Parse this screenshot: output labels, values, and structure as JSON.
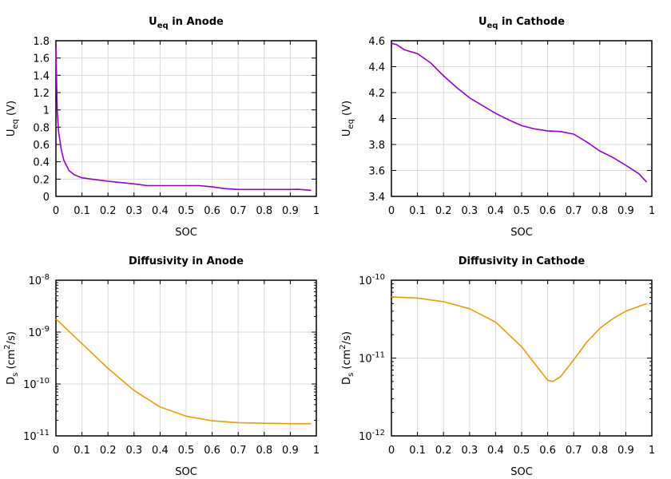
{
  "chart_data": [
    {
      "type": "line",
      "title": {
        "main": "U",
        "sub": "eq",
        "rest": " in Anode"
      },
      "xlabel": "SOC",
      "ylabel": {
        "main": "U",
        "sub": "eq",
        "rest": " (V)"
      },
      "xlim": [
        0,
        1
      ],
      "ylim": [
        0,
        1.8
      ],
      "yscale": "linear",
      "grid": true,
      "xticks": [
        "0",
        "0.1",
        "0.2",
        "0.3",
        "0.4",
        "0.5",
        "0.6",
        "0.7",
        "0.8",
        "0.9",
        "1"
      ],
      "yticks": [
        "0",
        "0.2",
        "0.4",
        "0.6",
        "0.8",
        "1",
        "1.2",
        "1.4",
        "1.6",
        "1.8"
      ],
      "color": "#9400d3",
      "x": [
        0,
        0.005,
        0.01,
        0.02,
        0.03,
        0.05,
        0.07,
        0.1,
        0.15,
        0.2,
        0.25,
        0.3,
        0.35,
        0.4,
        0.45,
        0.5,
        0.55,
        0.6,
        0.65,
        0.7,
        0.8,
        0.9,
        0.93,
        0.98
      ],
      "y": [
        1.72,
        1.0,
        0.75,
        0.55,
        0.42,
        0.3,
        0.25,
        0.215,
        0.195,
        0.175,
        0.16,
        0.145,
        0.125,
        0.125,
        0.125,
        0.125,
        0.125,
        0.11,
        0.09,
        0.08,
        0.08,
        0.08,
        0.082,
        0.07
      ]
    },
    {
      "type": "line",
      "title": {
        "main": "U",
        "sub": "eq",
        "rest": " in Cathode"
      },
      "xlabel": "SOC",
      "ylabel": {
        "main": "U",
        "sub": "eq",
        "rest": " (V)"
      },
      "xlim": [
        0,
        1
      ],
      "ylim": [
        3.4,
        4.6
      ],
      "yscale": "linear",
      "grid": true,
      "xticks": [
        "0",
        "0.1",
        "0.2",
        "0.3",
        "0.4",
        "0.5",
        "0.6",
        "0.7",
        "0.8",
        "0.9",
        "1"
      ],
      "yticks": [
        "3.4",
        "3.6",
        "3.8",
        "4",
        "4.2",
        "4.4",
        "4.6"
      ],
      "color": "#9400d3",
      "x": [
        0,
        0.02,
        0.05,
        0.1,
        0.15,
        0.2,
        0.25,
        0.3,
        0.35,
        0.4,
        0.45,
        0.5,
        0.55,
        0.6,
        0.65,
        0.7,
        0.75,
        0.8,
        0.85,
        0.9,
        0.95,
        0.98
      ],
      "y": [
        4.58,
        4.57,
        4.53,
        4.5,
        4.43,
        4.33,
        4.24,
        4.16,
        4.1,
        4.04,
        3.99,
        3.945,
        3.92,
        3.905,
        3.9,
        3.88,
        3.82,
        3.75,
        3.7,
        3.64,
        3.575,
        3.51
      ]
    },
    {
      "type": "line",
      "title": {
        "main": "Diffusivity in Anode",
        "sub": "",
        "rest": ""
      },
      "xlabel": "SOC",
      "ylabel": {
        "main": "D",
        "sub": "s",
        "rest": " (cm",
        "sup": "2",
        "rest2": "/s)"
      },
      "xlim": [
        0,
        1
      ],
      "ylim": [
        1e-11,
        1e-08
      ],
      "yscale": "log",
      "grid": true,
      "xticks": [
        "0",
        "0.1",
        "0.2",
        "0.3",
        "0.4",
        "0.5",
        "0.6",
        "0.7",
        "0.8",
        "0.9",
        "1"
      ],
      "yticks": [
        {
          "base": "10",
          "exp": "-11"
        },
        {
          "base": "10",
          "exp": "-10"
        },
        {
          "base": "10",
          "exp": "-9"
        },
        {
          "base": "10",
          "exp": "-8"
        }
      ],
      "color": "#e69f00",
      "x": [
        0,
        0.1,
        0.2,
        0.3,
        0.4,
        0.5,
        0.6,
        0.7,
        0.8,
        0.9,
        0.98
      ],
      "y": [
        1.8e-09,
        6e-10,
        2e-10,
        7.5e-11,
        3.6e-11,
        2.4e-11,
        1.95e-11,
        1.8e-11,
        1.75e-11,
        1.72e-11,
        1.72e-11
      ]
    },
    {
      "type": "line",
      "title": {
        "main": "Diffusivity in Cathode",
        "sub": "",
        "rest": ""
      },
      "xlabel": "SOC",
      "ylabel": {
        "main": "D",
        "sub": "s",
        "rest": " (cm",
        "sup": "2",
        "rest2": "/s)"
      },
      "xlim": [
        0,
        1
      ],
      "ylim": [
        1e-12,
        1e-10
      ],
      "yscale": "log",
      "grid": true,
      "xticks": [
        "0",
        "0.1",
        "0.2",
        "0.3",
        "0.4",
        "0.5",
        "0.6",
        "0.7",
        "0.8",
        "0.9",
        "1"
      ],
      "yticks": [
        {
          "base": "10",
          "exp": "-12"
        },
        {
          "base": "10",
          "exp": "-11"
        },
        {
          "base": "10",
          "exp": "-10"
        }
      ],
      "color": "#e69f00",
      "x": [
        0,
        0.1,
        0.2,
        0.3,
        0.4,
        0.5,
        0.55,
        0.6,
        0.62,
        0.65,
        0.7,
        0.75,
        0.8,
        0.85,
        0.9,
        0.95,
        0.98
      ],
      "y": [
        6.1e-11,
        5.9e-11,
        5.3e-11,
        4.3e-11,
        2.9e-11,
        1.4e-11,
        8.5e-12,
        5.2e-12,
        5e-12,
        5.8e-12,
        9.5e-12,
        1.6e-11,
        2.4e-11,
        3.2e-11,
        4e-11,
        4.6e-11,
        5e-11
      ]
    }
  ]
}
